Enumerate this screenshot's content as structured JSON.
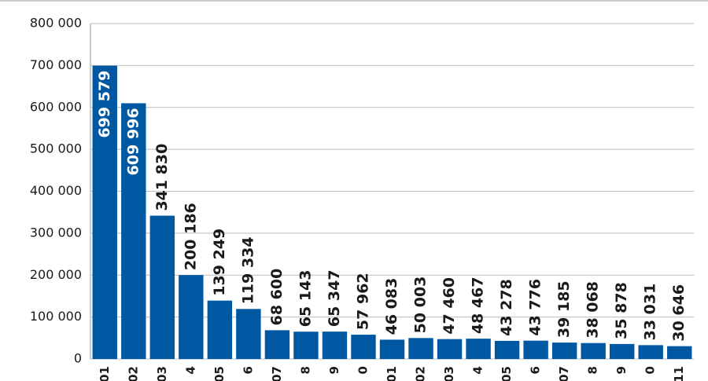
{
  "chart_data": {
    "type": "bar",
    "categories": [
      "01",
      "02",
      "03",
      "4",
      "05",
      "6",
      "07",
      "8",
      "9",
      "0",
      "01",
      "02",
      "03",
      "4",
      "05",
      "6",
      "07",
      "8",
      "9",
      "0",
      "11"
    ],
    "values": [
      699579,
      609996,
      341830,
      200186,
      139249,
      119334,
      68600,
      65143,
      65347,
      57962,
      46083,
      50003,
      47460,
      48467,
      43278,
      43776,
      39185,
      38068,
      35878,
      33031,
      30646
    ],
    "value_labels": [
      "699 579",
      "609 996",
      "341 830",
      "200 186",
      "139 249",
      "119 334",
      "68 600",
      "65 143",
      "65 347",
      "57 962",
      "46 083",
      "50 003",
      "47 460",
      "48 467",
      "43 278",
      "43 776",
      "39 185",
      "38 068",
      "35 878",
      "33 031",
      "30 646"
    ],
    "color": "#0058a3",
    "ylim": [
      0,
      800000
    ],
    "yticks": [
      0,
      {
        "value": 100000,
        "label": "100 000"
      },
      {
        "value": 200000,
        "label": "200 000"
      },
      {
        "value": 300000,
        "label": "300 000"
      },
      {
        "value": 400000,
        "label": "400 000"
      },
      {
        "value": 500000,
        "label": "500 000"
      },
      {
        "value": 600000,
        "label": "600 000"
      },
      {
        "value": 700000,
        "label": "700 000"
      },
      {
        "value": 800000,
        "label": "800 000"
      }
    ],
    "grid": true
  }
}
